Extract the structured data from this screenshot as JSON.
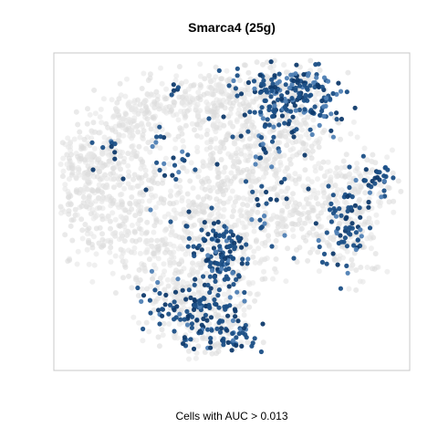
{
  "chart_data": {
    "type": "scatter",
    "title": "Smarca4 (25g)",
    "caption": "Cells with AUC > 0.013",
    "xlabel": "",
    "ylabel": "",
    "axes_visible": false,
    "grid": false,
    "legend": "none",
    "background_color": "#e6e6e6",
    "highlight_color": "#1b4f86",
    "highlight_color_light": "#4f7fb4",
    "highlight_color_dark": "#0f3a6b",
    "frame_color": "#c8c8c8"
  }
}
